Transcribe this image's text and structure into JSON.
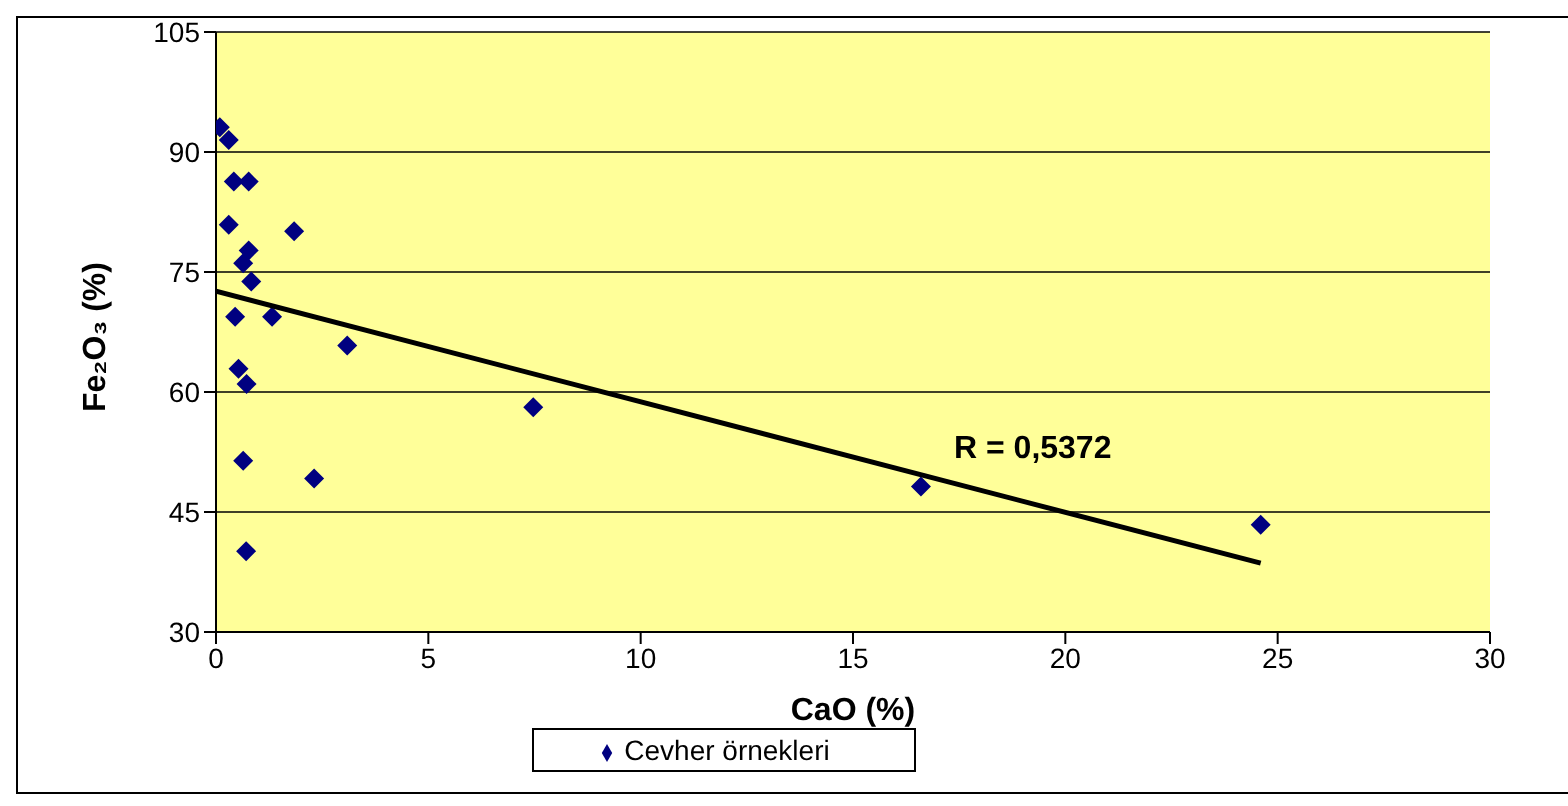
{
  "chart_data": {
    "type": "scatter",
    "xlabel": "CaO (%)",
    "ylabel": "Fe₂O₃ (%)",
    "xlim": [
      0,
      30
    ],
    "xticks": [
      0,
      5,
      10,
      15,
      20,
      25,
      30
    ],
    "ylim": [
      30,
      105
    ],
    "yticks": [
      30,
      45,
      60,
      75,
      90,
      105
    ],
    "grid": "y",
    "legend": "bottom",
    "marker": "diamond",
    "annotations": [
      "R = 0,5372"
    ],
    "series": [
      {
        "name": "Cevher örnekleri",
        "color": "#000080",
        "x": [
          0.09,
          0.3,
          0.42,
          0.77,
          0.3,
          1.84,
          0.77,
          0.64,
          0.83,
          0.45,
          1.32,
          3.09,
          0.53,
          0.72,
          0.64,
          2.31,
          0.71,
          7.47,
          16.6,
          24.6
        ],
        "values": [
          93.1,
          91.5,
          86.3,
          86.3,
          80.9,
          80.1,
          77.7,
          76.1,
          73.8,
          69.4,
          69.4,
          65.8,
          62.9,
          61.0,
          51.4,
          49.2,
          40.1,
          58.1,
          48.2,
          43.4
        ]
      },
      {
        "type": "line",
        "color": "#000000",
        "marker": "none",
        "x": [
          0,
          24.6
        ],
        "values": [
          72.6,
          38.6
        ]
      }
    ]
  }
}
